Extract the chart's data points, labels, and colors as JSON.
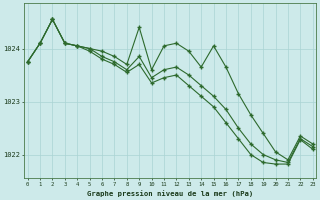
{
  "line1_x": [
    0,
    1,
    2,
    3,
    4,
    5,
    6,
    7,
    8,
    9,
    10,
    11,
    12,
    13,
    14,
    15,
    16,
    17,
    18,
    19,
    20,
    21,
    22,
    23
  ],
  "line1_y": [
    1023.75,
    1024.1,
    1024.55,
    1024.1,
    1024.05,
    1024.0,
    1023.95,
    1023.85,
    1023.7,
    1024.4,
    1023.6,
    1024.05,
    1024.1,
    1023.95,
    1023.65,
    1024.05,
    1023.65,
    1023.15,
    1022.75,
    1022.4,
    1022.05,
    1021.9,
    1022.35,
    1022.2
  ],
  "line2_x": [
    0,
    1,
    2,
    3,
    4,
    5,
    6,
    7,
    8,
    9,
    10,
    11,
    12,
    13,
    14,
    15,
    16,
    17,
    18,
    19,
    20,
    21,
    22,
    23
  ],
  "line2_y": [
    1023.75,
    1024.1,
    1024.55,
    1024.1,
    1024.05,
    1024.0,
    1023.85,
    1023.75,
    1023.6,
    1023.85,
    1023.45,
    1023.6,
    1023.65,
    1023.5,
    1023.3,
    1023.1,
    1022.85,
    1022.5,
    1022.2,
    1022.0,
    1021.9,
    1021.85,
    1022.3,
    1022.15
  ],
  "line3_x": [
    0,
    1,
    2,
    3,
    4,
    5,
    6,
    7,
    8,
    9,
    10,
    11,
    12,
    13,
    14,
    15,
    16,
    17,
    18,
    19,
    20,
    21,
    22,
    23
  ],
  "line3_y": [
    1023.75,
    1024.1,
    1024.55,
    1024.1,
    1024.05,
    1023.95,
    1023.8,
    1023.7,
    1023.55,
    1023.7,
    1023.35,
    1023.45,
    1023.5,
    1023.3,
    1023.1,
    1022.9,
    1022.6,
    1022.3,
    1022.0,
    1021.85,
    1021.82,
    1021.82,
    1022.28,
    1022.1
  ],
  "line_color": "#2d6a2d",
  "bg_color": "#cdeaea",
  "grid_color": "#aad4d4",
  "xlabel": "Graphe pression niveau de la mer (hPa)",
  "xticks": [
    0,
    1,
    2,
    3,
    4,
    5,
    6,
    7,
    8,
    9,
    10,
    11,
    12,
    13,
    14,
    15,
    16,
    17,
    18,
    19,
    20,
    21,
    22,
    23
  ],
  "yticks": [
    1022,
    1023,
    1024
  ],
  "ylim": [
    1021.55,
    1024.85
  ],
  "xlim": [
    -0.3,
    23.3
  ]
}
